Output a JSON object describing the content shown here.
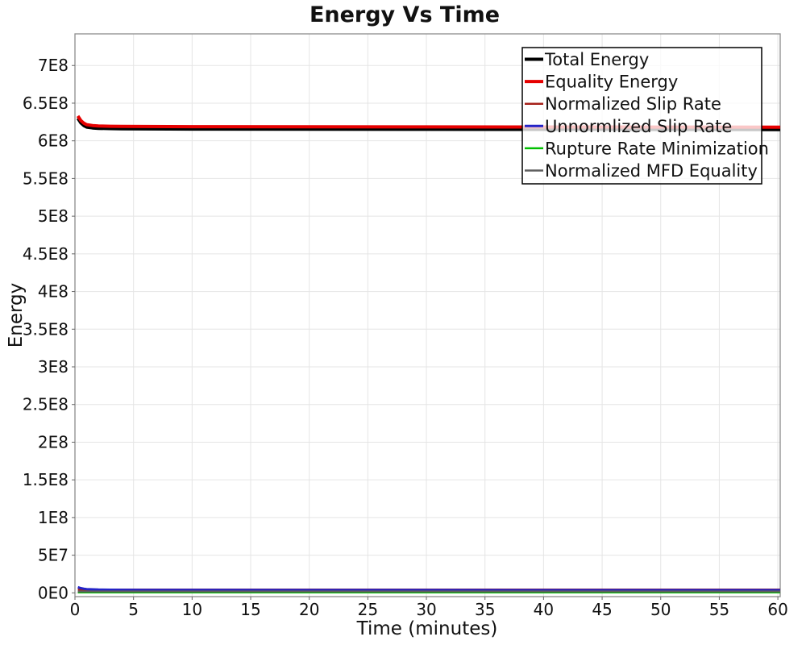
{
  "title": "Energy Vs Time",
  "chart_data": {
    "type": "line",
    "title": "Energy Vs Time",
    "xlabel": "Time (minutes)",
    "ylabel": "Energy",
    "xlim": [
      0,
      60.2
    ],
    "ylim": [
      -5000000,
      742000000
    ],
    "grid": true,
    "legend_position": "top-right",
    "x_ticks": [
      0,
      5,
      10,
      15,
      20,
      25,
      30,
      35,
      40,
      45,
      50,
      55,
      60
    ],
    "y_ticks": [
      {
        "value": 0,
        "label": "0E0"
      },
      {
        "value": 50000000,
        "label": "5E7"
      },
      {
        "value": 100000000,
        "label": "1E8"
      },
      {
        "value": 150000000,
        "label": "1.5E8"
      },
      {
        "value": 200000000,
        "label": "2E8"
      },
      {
        "value": 250000000,
        "label": "2.5E8"
      },
      {
        "value": 300000000,
        "label": "3E8"
      },
      {
        "value": 350000000,
        "label": "3.5E8"
      },
      {
        "value": 400000000,
        "label": "4E8"
      },
      {
        "value": 450000000,
        "label": "4.5E8"
      },
      {
        "value": 500000000,
        "label": "5E8"
      },
      {
        "value": 550000000,
        "label": "5.5E8"
      },
      {
        "value": 600000000,
        "label": "6E8"
      },
      {
        "value": 650000000,
        "label": "6.5E8"
      },
      {
        "value": 700000000,
        "label": "7E8"
      }
    ],
    "x_common": [
      0.25,
      0.5,
      0.75,
      1,
      1.5,
      2,
      3,
      4,
      6,
      10,
      20,
      30,
      40,
      50,
      60.2
    ],
    "series": [
      {
        "name": "Total Energy",
        "color": "#000000",
        "width": 4,
        "y": [
          629800000,
          623800000,
          620300000,
          618300000,
          617100000,
          616600000,
          616200000,
          616000000,
          615800000,
          615600000,
          615400000,
          615300000,
          615200000,
          615100000,
          615000000
        ]
      },
      {
        "name": "Equality Energy",
        "color": "#e60000",
        "width": 4,
        "y": [
          633000000,
          627000000,
          623500000,
          621500000,
          620300000,
          619800000,
          619400000,
          619200000,
          619000000,
          618800000,
          618600000,
          618500000,
          618400000,
          618300000,
          618200000
        ]
      },
      {
        "name": "Normalized Slip Rate",
        "color": "#a52019",
        "width": 2.5,
        "y": [
          4300000,
          4300000,
          4300000,
          4300000,
          4300000,
          4300000,
          4300000,
          4300000,
          4300000,
          4300000,
          4300000,
          4300000,
          4300000,
          4300000,
          4300000
        ]
      },
      {
        "name": "Unnormlized Slip Rate",
        "color": "#2323c8",
        "width": 3,
        "y": [
          7500000,
          6200000,
          5500000,
          5000000,
          4600000,
          4300000,
          4100000,
          4000000,
          3900000,
          3800000,
          3700000,
          3700000,
          3600000,
          3600000,
          3600000
        ]
      },
      {
        "name": "Rupture Rate Minimization",
        "color": "#00bf00",
        "width": 2.5,
        "y": [
          600000,
          600000,
          600000,
          600000,
          600000,
          600000,
          600000,
          600000,
          600000,
          600000,
          600000,
          600000,
          600000,
          600000,
          600000
        ]
      },
      {
        "name": "Normalized MFD Equality",
        "color": "#5f5f5f",
        "width": 2.5,
        "y": [
          1800000,
          1800000,
          1800000,
          1800000,
          1800000,
          1800000,
          1800000,
          1800000,
          1800000,
          1800000,
          1800000,
          1800000,
          1800000,
          1800000,
          1800000
        ]
      }
    ]
  }
}
